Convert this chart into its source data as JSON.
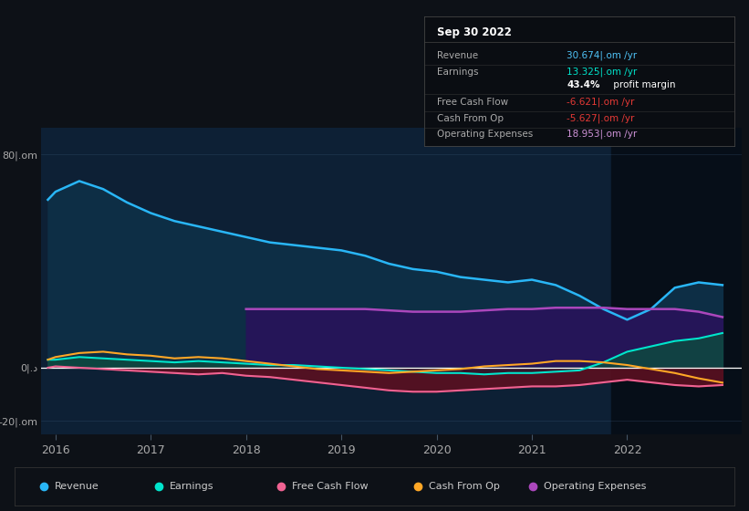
{
  "bg_color": "#0d1117",
  "chart_bg": "#0d2035",
  "highlight_bg": "#060e18",
  "legend": [
    {
      "label": "Revenue",
      "color": "#29b6f6"
    },
    {
      "label": "Earnings",
      "color": "#00e5cc"
    },
    {
      "label": "Free Cash Flow",
      "color": "#f06292"
    },
    {
      "label": "Cash From Op",
      "color": "#ffa726"
    },
    {
      "label": "Operating Expenses",
      "color": "#ab47bc"
    }
  ],
  "ylim": [
    -25,
    90
  ],
  "xlim": [
    2015.85,
    2023.2
  ],
  "ytick_vals": [
    -20,
    0,
    80
  ],
  "ytick_labels": [
    "-20|.om",
    "0|.د",
    "80|.om"
  ],
  "xtick_vals": [
    2016,
    2017,
    2018,
    2019,
    2020,
    2021,
    2022
  ],
  "xtick_labels": [
    "2016",
    "2017",
    "2018",
    "2019",
    "2020",
    "2021",
    "2022"
  ],
  "x": [
    2015.92,
    2016.0,
    2016.25,
    2016.5,
    2016.75,
    2017.0,
    2017.25,
    2017.5,
    2017.75,
    2018.0,
    2018.25,
    2018.5,
    2018.75,
    2019.0,
    2019.25,
    2019.5,
    2019.75,
    2020.0,
    2020.25,
    2020.5,
    2020.75,
    2021.0,
    2021.25,
    2021.5,
    2021.75,
    2022.0,
    2022.25,
    2022.5,
    2022.75,
    2023.0
  ],
  "revenue": [
    63,
    66,
    70,
    67,
    62,
    58,
    55,
    53,
    51,
    49,
    47,
    46,
    45,
    44,
    42,
    39,
    37,
    36,
    34,
    33,
    32,
    33,
    31,
    27,
    22,
    18,
    22,
    30,
    32,
    31
  ],
  "earnings": [
    3,
    3,
    4,
    3.5,
    3,
    2.5,
    2,
    2.5,
    2,
    1.5,
    1,
    1,
    0.5,
    0,
    -0.5,
    -1,
    -1.5,
    -2,
    -2,
    -2.5,
    -2,
    -2,
    -1.5,
    -1,
    2,
    6,
    8,
    10,
    11,
    13
  ],
  "free_cash_flow": [
    0,
    0.5,
    0,
    -0.5,
    -1,
    -1.5,
    -2,
    -2.5,
    -2,
    -3,
    -3.5,
    -4.5,
    -5.5,
    -6.5,
    -7.5,
    -8.5,
    -9,
    -9,
    -8.5,
    -8,
    -7.5,
    -7,
    -7,
    -6.5,
    -5.5,
    -4.5,
    -5.5,
    -6.5,
    -7,
    -6.5
  ],
  "cash_from_op": [
    3,
    4,
    5.5,
    6,
    5,
    4.5,
    3.5,
    4,
    3.5,
    2.5,
    1.5,
    0.5,
    -0.5,
    -1,
    -1.5,
    -2,
    -1.5,
    -1,
    -0.5,
    0.5,
    1,
    1.5,
    2.5,
    2.5,
    2,
    1,
    -0.5,
    -2,
    -4,
    -5.6
  ],
  "opex": [
    0,
    0,
    0,
    0,
    0,
    0,
    0,
    0,
    0,
    22,
    22,
    22,
    22,
    22,
    22,
    21.5,
    21,
    21,
    21,
    21.5,
    22,
    22,
    22.5,
    22.5,
    22.5,
    22,
    22,
    22,
    21,
    19
  ],
  "highlight_x_start": 2021.83,
  "highlight_x_end": 2023.2,
  "info_box": {
    "title": "Sep 30 2022",
    "rows": [
      {
        "label": "Revenue",
        "value": "30.674|.om /yr",
        "value_color": "#4fc3f7"
      },
      {
        "label": "Earnings",
        "value": "13.325|.om /yr",
        "value_color": "#00e5cc"
      },
      {
        "label": "",
        "value": "43.4% profit margin",
        "value_color": "#ffffff"
      },
      {
        "label": "Free Cash Flow",
        "value": "-6.621|.om /yr",
        "value_color": "#e53935"
      },
      {
        "label": "Cash From Op",
        "value": "-5.627|.om /yr",
        "value_color": "#e53935"
      },
      {
        "label": "Operating Expenses",
        "value": "18.953|.om /yr",
        "value_color": "#ce93d8"
      }
    ]
  }
}
